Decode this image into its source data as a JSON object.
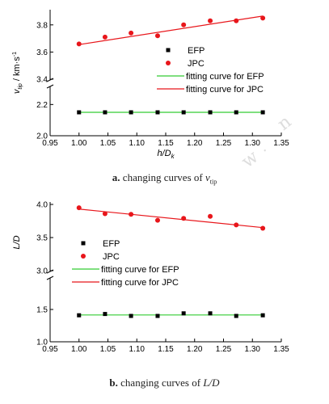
{
  "captions": [
    {
      "letter": "a.",
      "text": " changing curves of ",
      "var": "v",
      "sub": "tip"
    },
    {
      "letter": "b.",
      "text": " changing curves of ",
      "var": "L/D"
    }
  ],
  "chart_data": [
    {
      "type": "scatter",
      "xlabel": "h/Dk",
      "ylabel": "vtip / km·s-1",
      "xlim": [
        0.95,
        1.35
      ],
      "xticks": [
        "0.95",
        "1.00",
        "1.05",
        "1.10",
        "1.15",
        "1.20",
        "1.25",
        "1.30",
        "1.35"
      ],
      "broken_y_axis": true,
      "upper_segment": {
        "ylim": [
          3.4,
          3.9
        ],
        "yticks": [
          "3.4",
          "3.6",
          "3.8"
        ]
      },
      "lower_segment": {
        "ylim": [
          2.0,
          2.3
        ],
        "yticks": [
          "2.0",
          "2.2"
        ]
      },
      "x": [
        1.0,
        1.045,
        1.09,
        1.136,
        1.181,
        1.227,
        1.272,
        1.318
      ],
      "series": [
        {
          "name": "EFP",
          "marker": "square",
          "color": "#000000",
          "values": [
            2.15,
            2.15,
            2.15,
            2.15,
            2.15,
            2.15,
            2.15,
            2.15
          ]
        },
        {
          "name": "JPC",
          "marker": "circle",
          "color": "#e8161b",
          "values": [
            3.66,
            3.71,
            3.74,
            3.72,
            3.8,
            3.83,
            3.83,
            3.85
          ]
        }
      ],
      "fits": [
        {
          "name": "fitting curve for EFP",
          "color": "#33cc33",
          "x": [
            1.0,
            1.318
          ],
          "y": [
            2.15,
            2.15
          ]
        },
        {
          "name": "fitting curve for JPC",
          "color": "#e8161b",
          "x": [
            1.0,
            1.318
          ],
          "y": [
            3.655,
            3.865
          ]
        }
      ],
      "legend_position": "center-right"
    },
    {
      "type": "scatter",
      "xlabel": "",
      "ylabel": "L/D",
      "xlim": [
        0.95,
        1.35
      ],
      "xticks": [
        "0.95",
        "1.00",
        "1.05",
        "1.10",
        "1.15",
        "1.20",
        "1.25",
        "1.30",
        "1.35"
      ],
      "broken_y_axis": true,
      "upper_segment": {
        "ylim": [
          3.0,
          4.0
        ],
        "yticks": [
          "3.0",
          "3.5",
          "4.0"
        ]
      },
      "lower_segment": {
        "ylim": [
          1.0,
          1.6
        ],
        "yticks": [
          "1.0",
          "1.5"
        ]
      },
      "x": [
        1.0,
        1.045,
        1.09,
        1.136,
        1.181,
        1.227,
        1.272,
        1.318
      ],
      "series": [
        {
          "name": "EFP",
          "marker": "square",
          "color": "#000000",
          "values": [
            1.41,
            1.43,
            1.4,
            1.4,
            1.44,
            1.44,
            1.4,
            1.41
          ]
        },
        {
          "name": "JPC",
          "marker": "circle",
          "color": "#e8161b",
          "values": [
            3.95,
            3.86,
            3.85,
            3.76,
            3.79,
            3.82,
            3.69,
            3.64
          ]
        }
      ],
      "fits": [
        {
          "name": "fitting curve for EFP",
          "color": "#33cc33",
          "x": [
            1.0,
            1.318
          ],
          "y": [
            1.415,
            1.415
          ]
        },
        {
          "name": "fitting curve for JPC",
          "color": "#e8161b",
          "x": [
            1.0,
            1.318
          ],
          "y": [
            3.93,
            3.65
          ]
        }
      ],
      "legend_position": "center-left"
    }
  ]
}
